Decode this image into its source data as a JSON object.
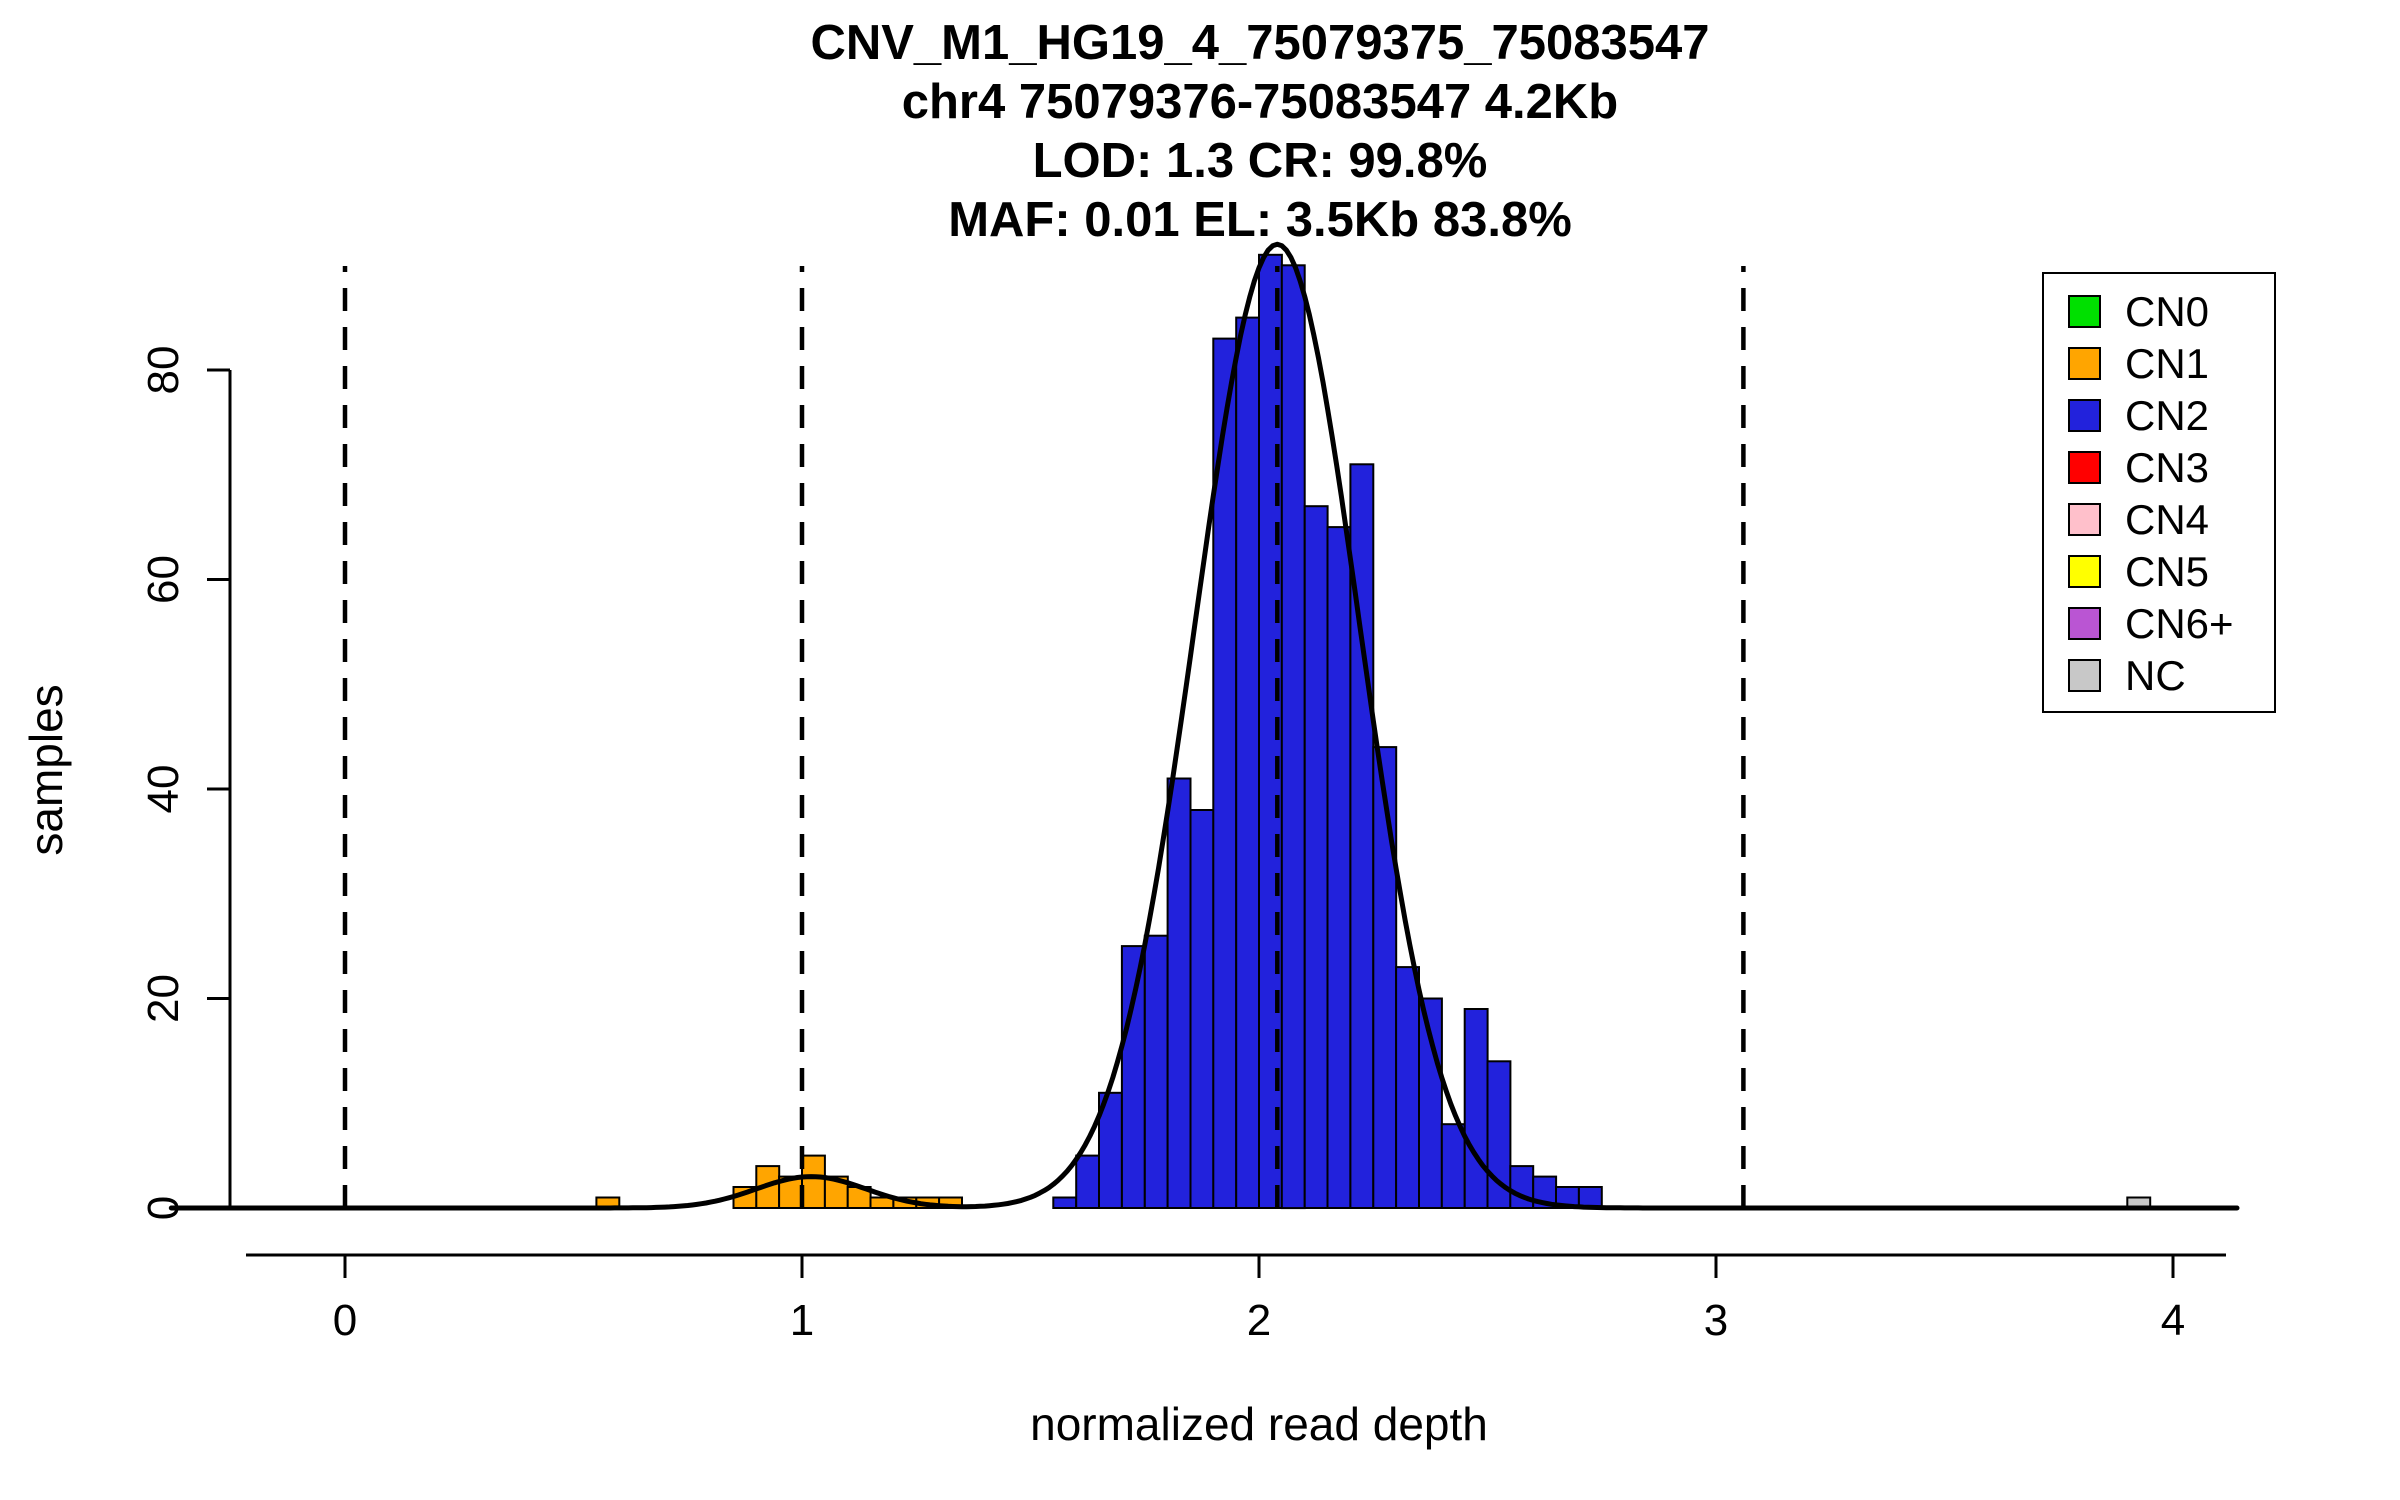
{
  "chart_data": {
    "type": "bar",
    "title_lines": [
      "CNV_M1_HG19_4_75079375_75083547",
      "chr4 75079376-75083547 4.2Kb",
      "LOD: 1.3 CR: 99.8%",
      "MAF: 0.01 EL: 3.5Kb 83.8%"
    ],
    "xlabel": "normalized read depth",
    "ylabel": "samples",
    "x_ticks": [
      0,
      1,
      2,
      3,
      4
    ],
    "y_ticks": [
      0,
      20,
      40,
      60,
      80
    ],
    "xlim": [
      -0.38,
      4.14
    ],
    "ylim": [
      0,
      93
    ],
    "grid": false,
    "bin_width": 0.05,
    "bars": [
      {
        "x": 0.55,
        "count": 1,
        "cn": "CN1"
      },
      {
        "x": 0.85,
        "count": 2,
        "cn": "CN1"
      },
      {
        "x": 0.9,
        "count": 4,
        "cn": "CN1"
      },
      {
        "x": 0.95,
        "count": 3,
        "cn": "CN1"
      },
      {
        "x": 1.0,
        "count": 5,
        "cn": "CN1"
      },
      {
        "x": 1.05,
        "count": 3,
        "cn": "CN1"
      },
      {
        "x": 1.1,
        "count": 2,
        "cn": "CN1"
      },
      {
        "x": 1.15,
        "count": 1,
        "cn": "CN1"
      },
      {
        "x": 1.2,
        "count": 1,
        "cn": "CN1"
      },
      {
        "x": 1.25,
        "count": 1,
        "cn": "CN1"
      },
      {
        "x": 1.3,
        "count": 1,
        "cn": "CN1"
      },
      {
        "x": 1.55,
        "count": 1,
        "cn": "CN2"
      },
      {
        "x": 1.6,
        "count": 5,
        "cn": "CN2"
      },
      {
        "x": 1.65,
        "count": 11,
        "cn": "CN2"
      },
      {
        "x": 1.7,
        "count": 25,
        "cn": "CN2"
      },
      {
        "x": 1.75,
        "count": 26,
        "cn": "CN2"
      },
      {
        "x": 1.8,
        "count": 41,
        "cn": "CN2"
      },
      {
        "x": 1.85,
        "count": 38,
        "cn": "CN2"
      },
      {
        "x": 1.9,
        "count": 83,
        "cn": "CN2"
      },
      {
        "x": 1.95,
        "count": 85,
        "cn": "CN2"
      },
      {
        "x": 2.0,
        "count": 91,
        "cn": "CN2"
      },
      {
        "x": 2.05,
        "count": 90,
        "cn": "CN2"
      },
      {
        "x": 2.1,
        "count": 67,
        "cn": "CN2"
      },
      {
        "x": 2.15,
        "count": 65,
        "cn": "CN2"
      },
      {
        "x": 2.2,
        "count": 71,
        "cn": "CN2"
      },
      {
        "x": 2.25,
        "count": 44,
        "cn": "CN2"
      },
      {
        "x": 2.3,
        "count": 23,
        "cn": "CN2"
      },
      {
        "x": 2.35,
        "count": 20,
        "cn": "CN2"
      },
      {
        "x": 2.4,
        "count": 8,
        "cn": "CN2"
      },
      {
        "x": 2.45,
        "count": 19,
        "cn": "CN2"
      },
      {
        "x": 2.5,
        "count": 14,
        "cn": "CN2"
      },
      {
        "x": 2.55,
        "count": 4,
        "cn": "CN2"
      },
      {
        "x": 2.6,
        "count": 3,
        "cn": "CN2"
      },
      {
        "x": 2.65,
        "count": 2,
        "cn": "CN2"
      },
      {
        "x": 2.7,
        "count": 2,
        "cn": "CN2"
      },
      {
        "x": 3.9,
        "count": 1,
        "cn": "NC"
      }
    ],
    "density_curve": {
      "components": [
        {
          "mean": 1.02,
          "sd": 0.12,
          "amp": 3
        },
        {
          "mean": 2.04,
          "sd": 0.18,
          "amp": 92
        }
      ]
    },
    "cn_boundary_lines_x": [
      0,
      1,
      2.04,
      3.06
    ]
  },
  "legend": {
    "position": "top-right",
    "items": [
      {
        "label": "CN0",
        "color": "#00E000"
      },
      {
        "label": "CN1",
        "color": "#FFA500"
      },
      {
        "label": "CN2",
        "color": "#2222DC"
      },
      {
        "label": "CN3",
        "color": "#FF0000"
      },
      {
        "label": "CN4",
        "color": "#FFC0CB"
      },
      {
        "label": "CN5",
        "color": "#FFFF00"
      },
      {
        "label": "CN6+",
        "color": "#BA55D3"
      },
      {
        "label": "NC",
        "color": "#C8C8C8"
      }
    ]
  }
}
